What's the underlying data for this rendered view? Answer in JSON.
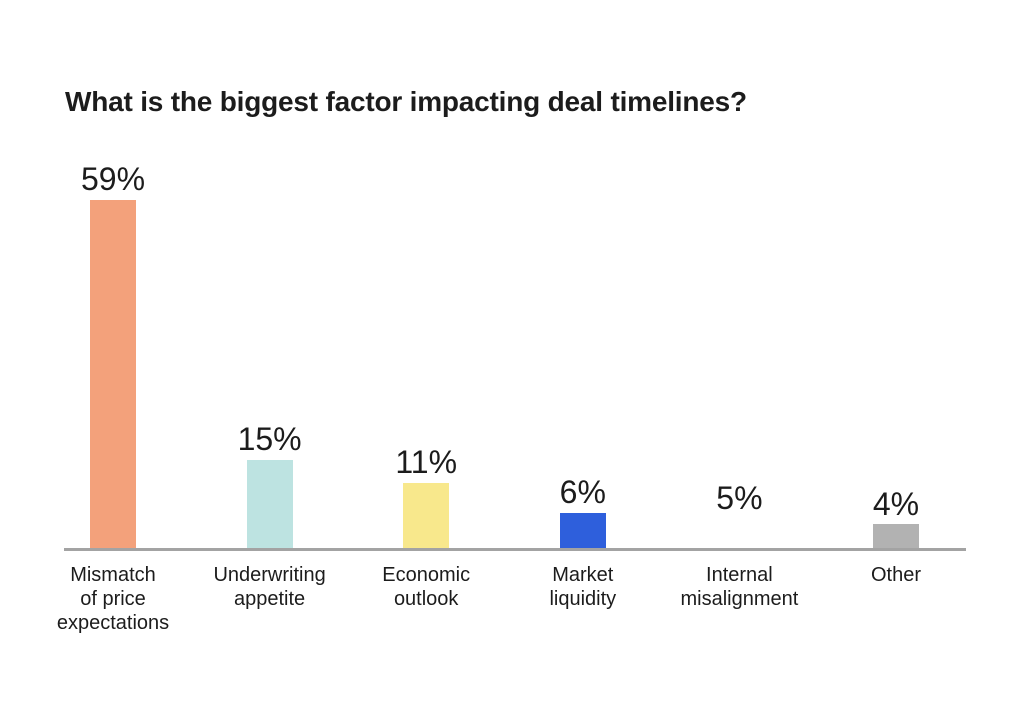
{
  "title": "What is the biggest factor impacting deal timelines?",
  "chart_data": {
    "type": "bar",
    "title": "What is the biggest factor impacting deal timelines?",
    "categories": [
      "Mismatch of price expectations",
      "Underwriting appetite",
      "Economic outlook",
      "Market liquidity",
      "Internal misalignment",
      "Other"
    ],
    "category_lines": [
      [
        "Mismatch",
        "of price",
        "expectations"
      ],
      [
        "Underwriting",
        "appetite"
      ],
      [
        "Economic",
        "outlook"
      ],
      [
        "Market",
        "liquidity"
      ],
      [
        "Internal",
        "misalignment"
      ],
      [
        "Other"
      ]
    ],
    "values": [
      59,
      15,
      11,
      6,
      5,
      4
    ],
    "value_labels": [
      "59%",
      "15%",
      "11%",
      "6%",
      "5%",
      "4%"
    ],
    "bar_colors": [
      "#F3A17B",
      "#BDE3E1",
      "#F8E88C",
      "#2E5FDC",
      "#FFFFFF",
      "#B2B2B2"
    ],
    "xlabel": "",
    "ylabel": "",
    "ylim": [
      0,
      62
    ],
    "grid": false,
    "legend": false,
    "axis_line_color": "#A3A3A3",
    "background_color": "#FFFFFF",
    "text_color": "#1C1C1C",
    "note": "Internal misalignment bar is rendered white (invisible against background)"
  }
}
